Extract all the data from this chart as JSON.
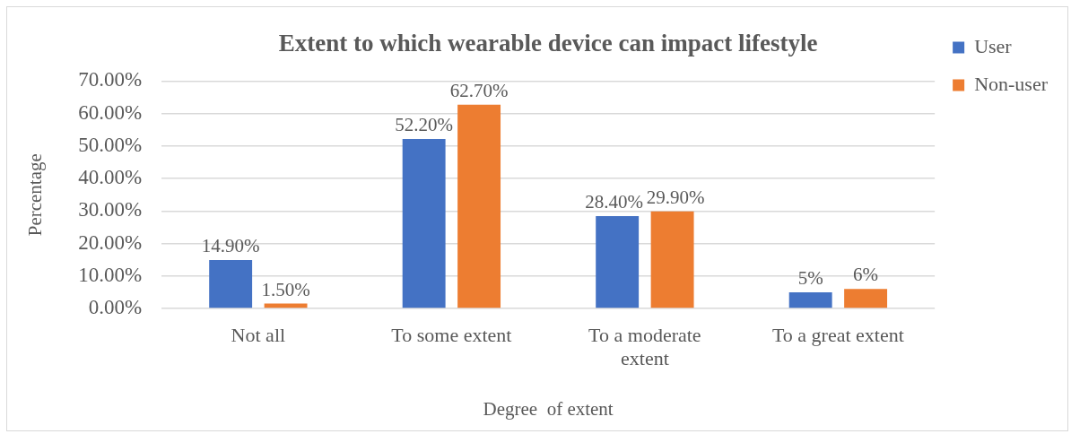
{
  "chart_data": {
    "type": "bar",
    "title": "Extent to which wearable device can impact lifestyle",
    "xlabel": "Degree  of extent",
    "ylabel": "Percentage",
    "categories": [
      "Not all",
      "To some extent",
      "To a moderate extent",
      "To a great extent"
    ],
    "series": [
      {
        "name": "User",
        "color": "#4472c4",
        "values": [
          14.9,
          52.2,
          28.4,
          5
        ],
        "value_labels": [
          "14.90%",
          "52.20%",
          "28.40%",
          "5%"
        ]
      },
      {
        "name": "Non-user",
        "color": "#ed7d31",
        "values": [
          1.5,
          62.7,
          29.9,
          6
        ],
        "value_labels": [
          "1.50%",
          "62.70%",
          "29.90%",
          "6%"
        ]
      }
    ],
    "ylim": [
      0,
      70
    ],
    "yticks": [
      {
        "value": 0,
        "label": "0.00%"
      },
      {
        "value": 10,
        "label": "10.00%"
      },
      {
        "value": 20,
        "label": "20.00%"
      },
      {
        "value": 30,
        "label": "30.00%"
      },
      {
        "value": 40,
        "label": "40.00%"
      },
      {
        "value": 50,
        "label": "50.00%"
      },
      {
        "value": 60,
        "label": "60.00%"
      },
      {
        "value": 70,
        "label": "70.00%"
      }
    ],
    "grid": "y",
    "legend": "top right"
  }
}
